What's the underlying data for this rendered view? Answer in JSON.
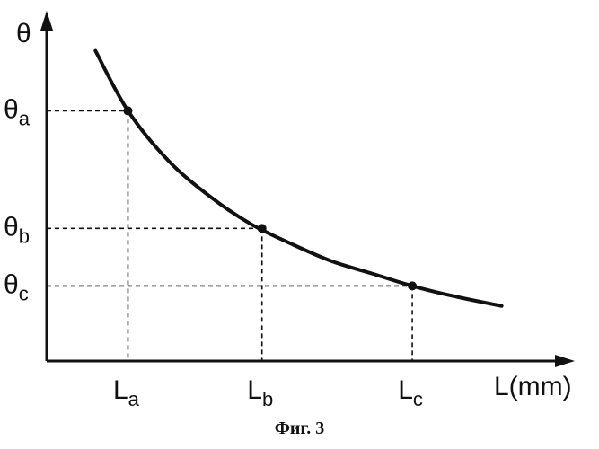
{
  "chart_data": {
    "type": "line",
    "title": "",
    "ylabel": "θ",
    "xlabel": "L(mm)",
    "series": [
      {
        "name": "",
        "x": [
          0.6,
          1.0,
          1.5,
          2.0,
          2.5,
          3.0,
          3.5,
          4.0,
          4.5,
          5.0,
          5.6
        ],
        "y": [
          6.2,
          5.0,
          4.0,
          3.3,
          2.75,
          2.35,
          2.0,
          1.75,
          1.5,
          1.3,
          1.1
        ]
      }
    ],
    "points": [
      {
        "x": 1.0,
        "y": 5.0,
        "xlabel": "L",
        "xsub": "a",
        "ylabel": "θ",
        "ysub": "a"
      },
      {
        "x": 2.65,
        "y": 2.65,
        "xlabel": "L",
        "xsub": "b",
        "ylabel": "θ",
        "ysub": "b"
      },
      {
        "x": 4.5,
        "y": 1.5,
        "xlabel": "L",
        "xsub": "c",
        "ylabel": "θ",
        "ysub": "c"
      }
    ],
    "xlim": [
      0,
      6.5
    ],
    "ylim": [
      0,
      7
    ],
    "grid": false
  },
  "caption": "Фиг. 3"
}
